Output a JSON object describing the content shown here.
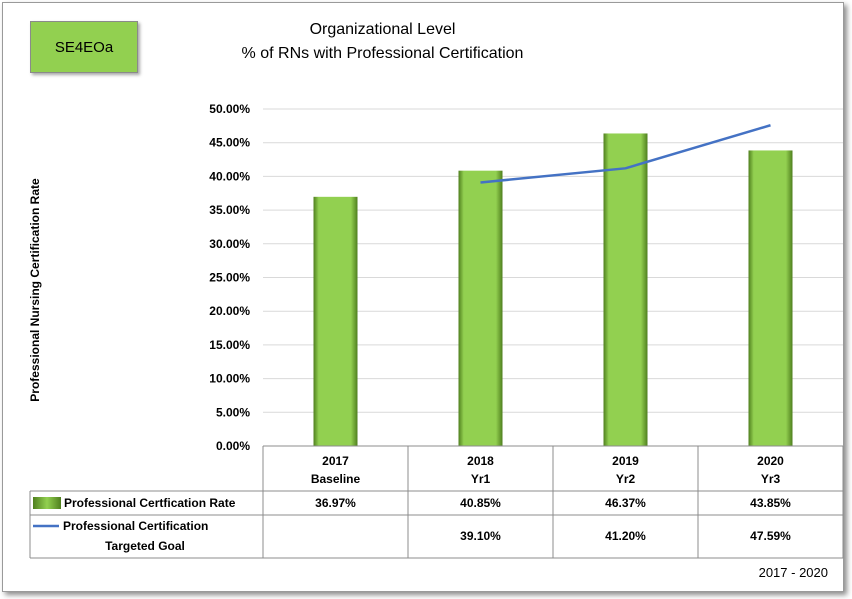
{
  "badge": "SE4EOa",
  "title_line1": "Organizational Level",
  "title_line2": "% of RNs with Professional Certification",
  "footer": "2017 - 2020",
  "colors": {
    "bar": "#92d050",
    "bar_dark": "#4f7f1e",
    "line": "#4472c4",
    "badge": "#92d050"
  },
  "chart_data": {
    "type": "bar",
    "title": "Organizational Level % of RNs with Professional Certification",
    "ylabel": "Professional Nursing Certification Rate",
    "xlabel": "",
    "ylim": [
      0,
      0.5
    ],
    "yticks": [
      "0.00%",
      "5.00%",
      "10.00%",
      "15.00%",
      "20.00%",
      "25.00%",
      "30.00%",
      "35.00%",
      "40.00%",
      "45.00%",
      "50.00%"
    ],
    "categories": [
      {
        "year": "2017",
        "label": "Baseline"
      },
      {
        "year": "2018",
        "label": "Yr1"
      },
      {
        "year": "2019",
        "label": "Yr2"
      },
      {
        "year": "2020",
        "label": "Yr3"
      }
    ],
    "grid": true,
    "legend_placement": "data-table",
    "series": [
      {
        "name": "Professional Certfication Rate",
        "type": "bar",
        "values": [
          0.3697,
          0.4085,
          0.4637,
          0.4385
        ],
        "labels": [
          "36.97%",
          "40.85%",
          "46.37%",
          "43.85%"
        ]
      },
      {
        "name_line1": "Professional Certification",
        "name_line2": "Targeted Goal",
        "type": "line",
        "values": [
          null,
          0.391,
          0.412,
          0.4759
        ],
        "labels": [
          "",
          "39.10%",
          "41.20%",
          "47.59%"
        ]
      }
    ]
  }
}
